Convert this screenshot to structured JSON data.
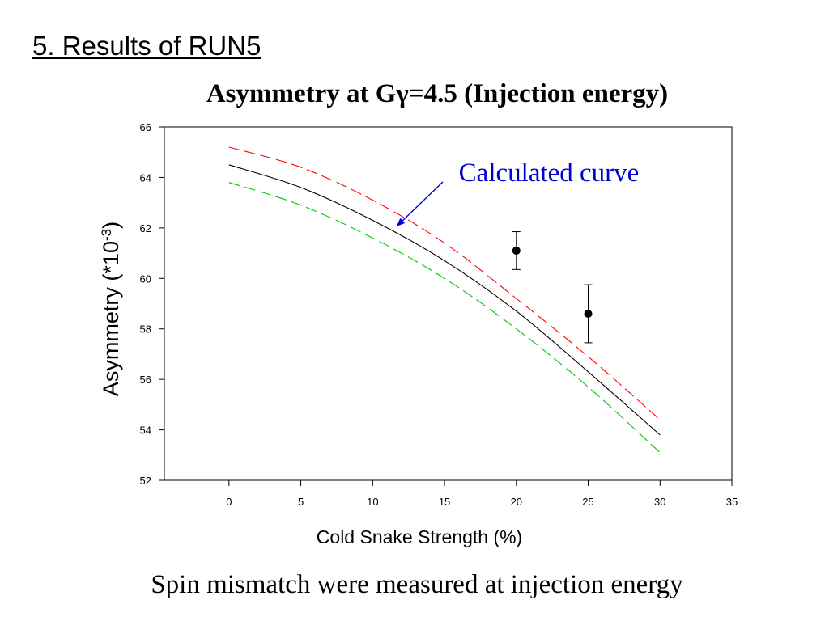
{
  "slide_title": "5. Results of RUN5",
  "chart_title_parts": [
    "Asymmetry at G",
    "γ",
    "=4.5 (Injection energy)"
  ],
  "caption": "Spin mismatch were measured at injection energy",
  "chart_data": {
    "type": "line",
    "xlabel": "Cold Snake Strength (%)",
    "ylabel_parts": [
      "Asymmetry (*10",
      "-3",
      ")"
    ],
    "xlim": [
      -4.5,
      35
    ],
    "ylim": [
      52,
      66
    ],
    "xticks": [
      0,
      5,
      10,
      15,
      20,
      25,
      30,
      35
    ],
    "yticks": [
      52,
      54,
      56,
      58,
      60,
      62,
      64,
      66
    ],
    "grid": false,
    "series": [
      {
        "color": "#ff0000",
        "dash": "dashed",
        "x": [
          0,
          5,
          10,
          15,
          20,
          25,
          30
        ],
        "y": [
          65.2,
          64.4,
          63.1,
          61.4,
          59.2,
          56.9,
          54.4
        ]
      },
      {
        "color": "#000000",
        "dash": "solid",
        "x": [
          0,
          5,
          10,
          15,
          20,
          25,
          30
        ],
        "y": [
          64.5,
          63.6,
          62.3,
          60.7,
          58.7,
          56.3,
          53.8
        ]
      },
      {
        "color": "#00c800",
        "dash": "dashed",
        "x": [
          0,
          5,
          10,
          15,
          20,
          25,
          30
        ],
        "y": [
          63.8,
          62.9,
          61.6,
          60.0,
          58.0,
          55.7,
          53.1
        ]
      }
    ],
    "points": [
      {
        "x": 20,
        "y": 61.1,
        "err_low": 60.35,
        "err_high": 61.85
      },
      {
        "x": 25,
        "y": 58.6,
        "err_low": 57.45,
        "err_high": 59.75
      }
    ],
    "annotation": {
      "text": "Calculated curve",
      "color": "#0000cc",
      "arrow_to": {
        "x": 11.5,
        "y": 62.0
      }
    }
  }
}
